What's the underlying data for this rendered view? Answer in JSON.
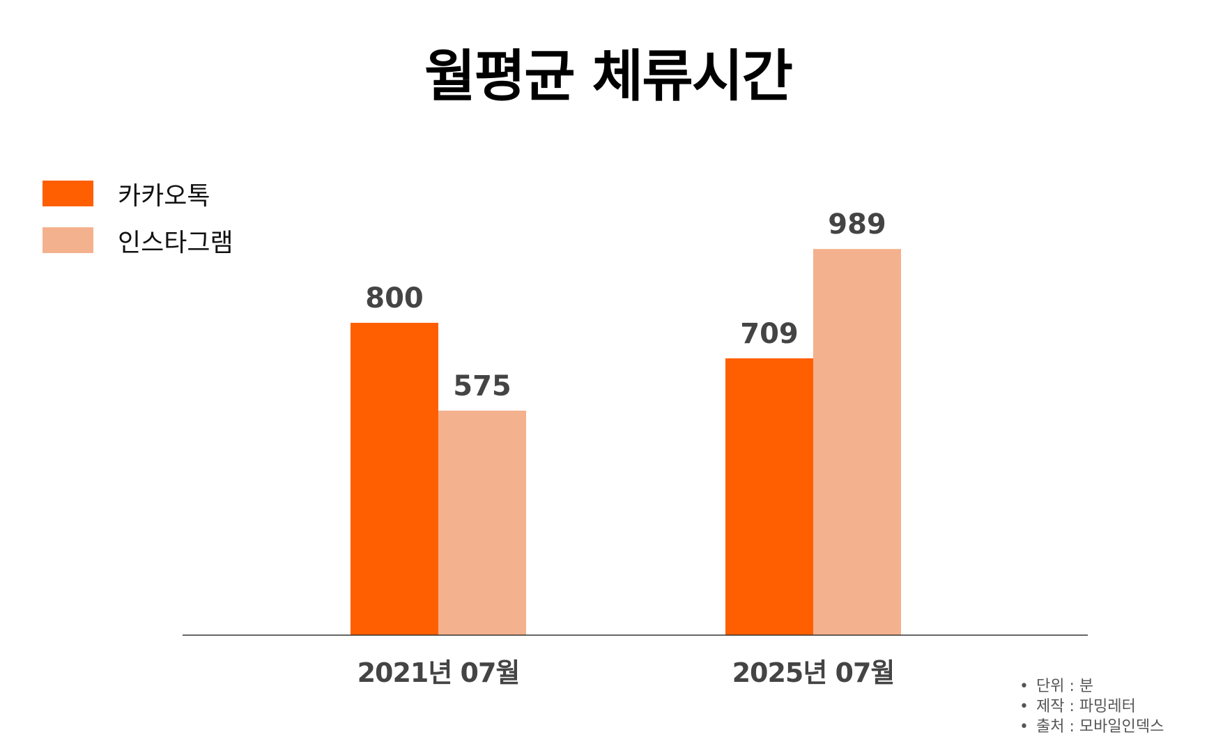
{
  "chart_data": {
    "type": "bar",
    "title": "월평균 체류시간",
    "categories": [
      "2021년 07월",
      "2025년 07월"
    ],
    "series": [
      {
        "name": "카카오톡",
        "values": [
          800,
          709
        ],
        "color": "#FF5F00"
      },
      {
        "name": "인스타그램",
        "values": [
          575,
          989
        ],
        "color": "#F4B18D"
      }
    ],
    "ylim": [
      0,
      1000
    ],
    "grid": false,
    "legend": "top-left",
    "value_label_color": "#444444"
  },
  "notes": [
    "단위 : 분",
    "제작 : 파밍레터",
    "출처 : 모바일인덱스"
  ]
}
